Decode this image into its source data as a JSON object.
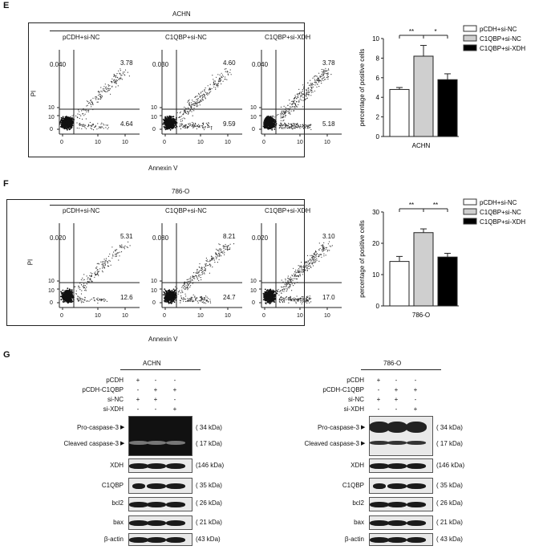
{
  "panels": {
    "E": {
      "letter": "E",
      "cell_line": "ACHN",
      "xlabel": "Annexin V",
      "ylabel": "PI",
      "plots": [
        {
          "title": "pCDH+si-NC",
          "q_ul": "0.040",
          "q_ur": "3.78",
          "q_lr": "4.64"
        },
        {
          "title": "C1QBP+si-NC",
          "q_ul": "0.030",
          "q_ur": "4.60",
          "q_lr": "9.59"
        },
        {
          "title": "C1QBP+si-XDH",
          "q_ul": "0.040",
          "q_ur": "3.78",
          "q_lr": "5.18"
        }
      ]
    },
    "F": {
      "letter": "F",
      "cell_line": "786-O",
      "xlabel": "Annexin V",
      "ylabel": "PI",
      "plots": [
        {
          "title": "pCDH+si-NC",
          "q_ul": "0.020",
          "q_ur": "5.31",
          "q_lr": "12.6"
        },
        {
          "title": "C1QBP+si-NC",
          "q_ul": "0.080",
          "q_ur": "8.21",
          "q_lr": "24.7"
        },
        {
          "title": "C1QBP+si-XDH",
          "q_ul": "0.020",
          "q_ur": "3.10",
          "q_lr": "17.0"
        }
      ]
    },
    "G": {
      "letter": "G",
      "blots": [
        {
          "cell_line": "ACHN",
          "rows": [
            "pCDH",
            "pCDH-C1QBP",
            "si-NC",
            "si-XDH"
          ],
          "signs": [
            [
              "+",
              "-",
              "-"
            ],
            [
              "-",
              "+",
              "+"
            ],
            [
              "+",
              "+",
              "-"
            ],
            [
              "-",
              "-",
              "+"
            ]
          ],
          "band_labels": [
            "Pro-caspase-3",
            "Cleaved caspase-3",
            "XDH",
            "C1QBP",
            "bcl2",
            "bax",
            "β-actin"
          ],
          "kda": [
            "( 34  kDa)",
            "( 17  kDa)",
            "(146 kDa)",
            "( 35  kDa)",
            "( 26  kDa)",
            "( 21  kDa)",
            "(43  kDa)"
          ]
        },
        {
          "cell_line": "786-O",
          "rows": [
            "pCDH",
            "pCDH-C1QBP",
            "si-NC",
            "si-XDH"
          ],
          "signs": [
            [
              "+",
              "-",
              "-"
            ],
            [
              "-",
              "+",
              "+"
            ],
            [
              "+",
              "+",
              "-"
            ],
            [
              "-",
              "-",
              "+"
            ]
          ],
          "band_labels": [
            "Pro-caspase-3",
            "Cleaved caspase-3",
            "XDH",
            "C1QBP",
            "bcl2",
            "bax",
            "β-actin"
          ],
          "kda": [
            "( 34  kDa)",
            "( 17  kDa)",
            "(146 kDa)",
            "( 35  kDa)",
            "( 26  kDa)",
            "( 21  kDa)",
            "( 43  kDa)"
          ]
        }
      ]
    }
  },
  "legend": [
    "pCDH+si-NC",
    "C1QBP+si-NC",
    "C1QBP+si-XDH"
  ],
  "legend_colors": [
    "#ffffff",
    "#cfcfcf",
    "#000000"
  ],
  "chart_data": [
    {
      "type": "bar",
      "categories": [
        "ACHN"
      ],
      "series": [
        {
          "name": "pCDH+si-NC",
          "values": [
            4.8
          ],
          "error": [
            0.2
          ]
        },
        {
          "name": "C1QBP+si-NC",
          "values": [
            8.2
          ],
          "error": [
            1.1
          ]
        },
        {
          "name": "C1QBP+si-XDH",
          "values": [
            5.8
          ],
          "error": [
            0.6
          ]
        }
      ],
      "ylabel": "percentage of positive cells",
      "xlabel": "ACHN",
      "ylim": [
        0,
        10
      ],
      "yticks": [
        "0",
        "2",
        "4",
        "6",
        "8",
        "10"
      ],
      "significance": [
        "**",
        "*"
      ]
    },
    {
      "type": "bar",
      "categories": [
        "786-O"
      ],
      "series": [
        {
          "name": "pCDH+si-NC",
          "values": [
            14.2
          ],
          "error": [
            1.6
          ]
        },
        {
          "name": "C1QBP+si-NC",
          "values": [
            23.4
          ],
          "error": [
            1.2
          ]
        },
        {
          "name": "C1QBP+si-XDH",
          "values": [
            15.6
          ],
          "error": [
            1.2
          ]
        }
      ],
      "ylabel": "percentage of positive cells",
      "xlabel": "786-O",
      "ylim": [
        0,
        30
      ],
      "yticks": [
        "0",
        "10",
        "20",
        "30"
      ],
      "significance": [
        "**",
        "**"
      ]
    }
  ]
}
